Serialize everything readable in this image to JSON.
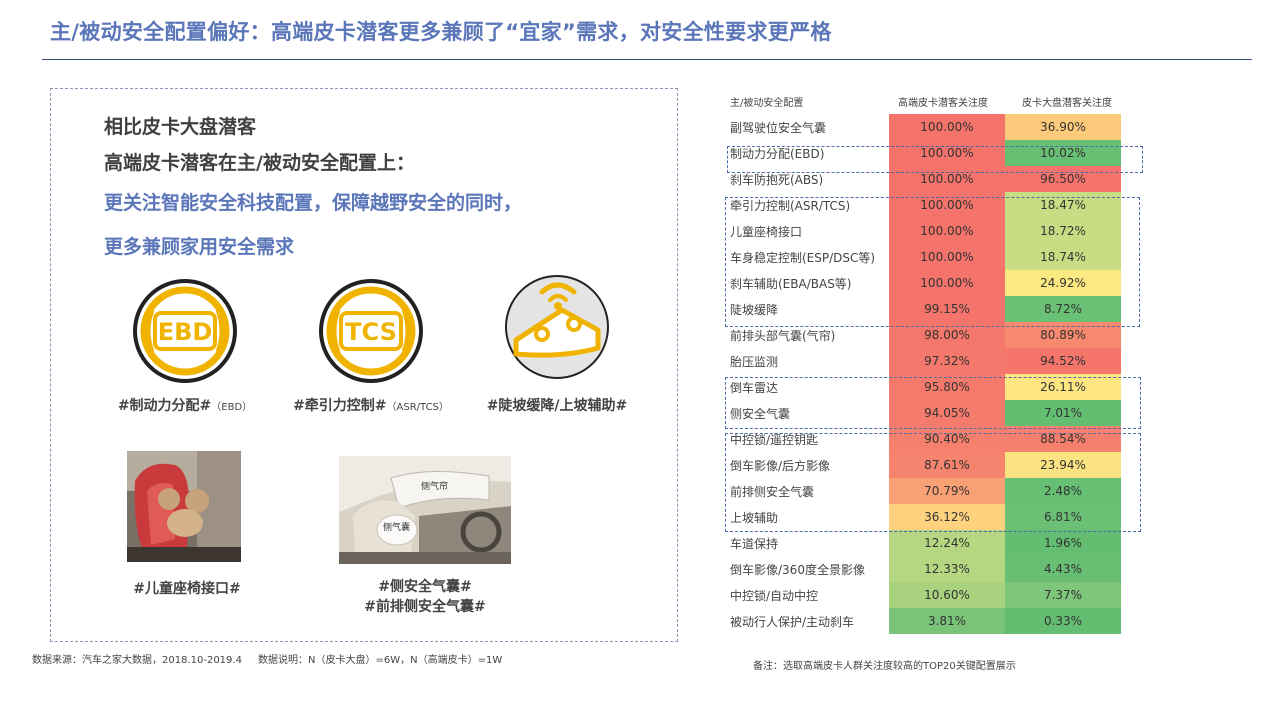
{
  "title": "主/被动安全配置偏好：高端皮卡潜客更多兼顾了“宜家”需求，对安全性要求更严格",
  "lead": {
    "line1": "相比皮卡大盘潜客",
    "line2": "高端皮卡潜客在主/被动安全配置上：",
    "line3": "更关注智能安全科技配置，保障越野安全的同时，",
    "line4": "更多兼顾家用安全需求"
  },
  "features": [
    {
      "icon_text": "EBD",
      "label": "#制动力分配#",
      "sub": "（EBD）"
    },
    {
      "icon_text": "TCS",
      "label": "#牵引力控制#",
      "sub": "（ASR/TCS）"
    },
    {
      "icon_text": "",
      "label": "#陡坡缓降/上坡辅助#",
      "sub": ""
    }
  ],
  "photos": [
    {
      "label": "#儿童座椅接口#",
      "caption": ""
    },
    {
      "label1": "#侧安全气囊#",
      "label2": "#前排侧安全气囊#",
      "caption1": "侧气帘",
      "caption2": "侧气囊"
    }
  ],
  "source_note": "数据来源：汽车之家大数据，2018.10-2019.4",
  "sample_note": "数据说明：N（皮卡大盘）=6W，N（高端皮卡）=1W",
  "foot_note": "备注：选取高端皮卡人群关注度较高的TOP20关键配置展示",
  "chart_data": {
    "type": "table",
    "columns": [
      "主/被动安全配置",
      "高端皮卡潜客关注度",
      "皮卡大盘潜客关注度"
    ],
    "rows": [
      {
        "name": "副驾驶位安全气囊",
        "high_end": "100.00%",
        "overall": "36.90%",
        "c1": "#f4736a",
        "c2": "#fdc97b"
      },
      {
        "name": "制动力分配(EBD)",
        "high_end": "100.00%",
        "overall": "10.02%",
        "c1": "#f4736a",
        "c2": "#67bf73"
      },
      {
        "name": "刹车防抱死(ABS)",
        "high_end": "100.00%",
        "overall": "96.50%",
        "c1": "#f4736a",
        "c2": "#f5736b"
      },
      {
        "name": "牵引力控制(ASR/TCS)",
        "high_end": "100.00%",
        "overall": "18.47%",
        "c1": "#f4736a",
        "c2": "#c8dd83"
      },
      {
        "name": "儿童座椅接口",
        "high_end": "100.00%",
        "overall": "18.72%",
        "c1": "#f4736a",
        "c2": "#c8dd83"
      },
      {
        "name": "车身稳定控制(ESP/DSC等)",
        "high_end": "100.00%",
        "overall": "18.74%",
        "c1": "#f4736a",
        "c2": "#c8dd83"
      },
      {
        "name": "刹车辅助(EBA/BAS等)",
        "high_end": "100.00%",
        "overall": "24.92%",
        "c1": "#f4736a",
        "c2": "#fde981"
      },
      {
        "name": "陡坡缓降",
        "high_end": "99.15%",
        "overall": "8.72%",
        "c1": "#f4736a",
        "c2": "#6ac074"
      },
      {
        "name": "前排头部气囊(气帘)",
        "high_end": "98.00%",
        "overall": "80.89%",
        "c1": "#f5776b",
        "c2": "#f7896f"
      },
      {
        "name": "胎压监测",
        "high_end": "97.32%",
        "overall": "94.52%",
        "c1": "#f5786c",
        "c2": "#f5756b"
      },
      {
        "name": "倒车雷达",
        "high_end": "95.80%",
        "overall": "26.11%",
        "c1": "#f57a6c",
        "c2": "#fde681"
      },
      {
        "name": "侧安全气囊",
        "high_end": "94.05%",
        "overall": "7.01%",
        "c1": "#f57b6c",
        "c2": "#63be72"
      },
      {
        "name": "中控锁/遥控钥匙",
        "high_end": "90.40%",
        "overall": "88.54%",
        "c1": "#f6806d",
        "c2": "#f6806d"
      },
      {
        "name": "倒车影像/后方影像",
        "high_end": "87.61%",
        "overall": "23.94%",
        "c1": "#f6836e",
        "c2": "#fbe382"
      },
      {
        "name": "前排侧安全气囊",
        "high_end": "70.79%",
        "overall": "2.48%",
        "c1": "#f9a074",
        "c2": "#66bf73"
      },
      {
        "name": "上坡辅助",
        "high_end": "36.12%",
        "overall": "6.81%",
        "c1": "#fed27f",
        "c2": "#6cc075"
      },
      {
        "name": "车道保持",
        "high_end": "12.24%",
        "overall": "1.96%",
        "c1": "#b5d781",
        "c2": "#63be72"
      },
      {
        "name": "倒车影像/360度全景影像",
        "high_end": "12.33%",
        "overall": "4.43%",
        "c1": "#b5d781",
        "c2": "#68bf73"
      },
      {
        "name": "中控锁/自动中控",
        "high_end": "10.60%",
        "overall": "7.37%",
        "c1": "#a9d27f",
        "c2": "#7dc67a"
      },
      {
        "name": "被动行人保护/主动刹车",
        "high_end": "3.81%",
        "overall": "0.33%",
        "c1": "#79c479",
        "c2": "#63be72"
      }
    ]
  }
}
